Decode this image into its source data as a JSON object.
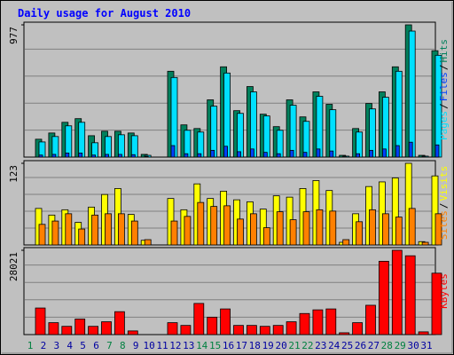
{
  "title": "Daily usage for August 2010",
  "legend_separator": "/",
  "categories": [
    "1",
    "2",
    "3",
    "4",
    "5",
    "6",
    "7",
    "8",
    "9",
    "10",
    "11",
    "12",
    "13",
    "14",
    "15",
    "16",
    "17",
    "18",
    "19",
    "20",
    "21",
    "22",
    "23",
    "24",
    "25",
    "26",
    "27",
    "28",
    "29",
    "30",
    "31"
  ],
  "category_colors": [
    "#008040",
    "#0000a0",
    "#0000a0",
    "#0000a0",
    "#0000a0",
    "#0000a0",
    "#008040",
    "#008040",
    "#0000a0",
    "#0000a0",
    "#0000a0",
    "#0000a0",
    "#0000a0",
    "#008040",
    "#008040",
    "#0000a0",
    "#0000a0",
    "#0000a0",
    "#0000a0",
    "#0000a0",
    "#008040",
    "#008040",
    "#0000a0",
    "#0000a0",
    "#0000a0",
    "#0000a0",
    "#0000a0",
    "#008040",
    "#008040",
    "#0000a0",
    "#0000a0"
  ],
  "chart_data": [
    {
      "type": "bar",
      "ylim": [
        0,
        977
      ],
      "yticks": [
        977
      ],
      "series": [
        {
          "name": "Pages",
          "color": "#00e0ff",
          "values": [
            112,
            152,
            231,
            257,
            106,
            152,
            165,
            158,
            13,
            0,
            588,
            198,
            185,
            376,
            621,
            323,
            482,
            304,
            198,
            383,
            264,
            449,
            350,
            7,
            185,
            356,
            442,
            634,
            931,
            7,
            752
          ]
        },
        {
          "name": "Files",
          "color": "#0040ff",
          "values": [
            15,
            20,
            30,
            30,
            15,
            20,
            20,
            18,
            5,
            0,
            85,
            25,
            25,
            50,
            80,
            40,
            60,
            35,
            25,
            50,
            35,
            60,
            45,
            2,
            25,
            50,
            60,
            85,
            110,
            2,
            90
          ]
        },
        {
          "name": "Hits",
          "color": "#00805c",
          "values": [
            132,
            178,
            257,
            284,
            158,
            191,
            191,
            178,
            20,
            0,
            634,
            238,
            211,
            423,
            667,
            343,
            521,
            317,
            225,
            423,
            297,
            482,
            390,
            13,
            211,
            396,
            482,
            667,
            977,
            13,
            786
          ]
        }
      ]
    },
    {
      "type": "bar",
      "ylim": [
        0,
        123
      ],
      "yticks": [
        123
      ],
      "series": [
        {
          "name": "Sites",
          "color": "#ff8000",
          "values": [
            31,
            36,
            47,
            24,
            45,
            47,
            47,
            36,
            8,
            0,
            36,
            43,
            64,
            58,
            59,
            39,
            47,
            26,
            50,
            38,
            50,
            53,
            51,
            8,
            35,
            53,
            47,
            42,
            55,
            4,
            47
          ]
        },
        {
          "name": "Visits",
          "color": "#ffff00",
          "values": [
            55,
            45,
            53,
            34,
            57,
            76,
            85,
            46,
            7,
            0,
            70,
            53,
            92,
            70,
            81,
            68,
            65,
            54,
            74,
            72,
            85,
            97,
            82,
            4,
            47,
            88,
            95,
            101,
            123,
            5,
            104
          ]
        }
      ]
    },
    {
      "type": "bar",
      "ylim": [
        0,
        28021
      ],
      "yticks": [
        28021
      ],
      "series": [
        {
          "name": "KBytes",
          "color": "#ff0000",
          "values": [
            8833,
            3960,
            2741,
            5178,
            2741,
            4264,
            7615,
            1218,
            0,
            0,
            3960,
            3046,
            10356,
            5787,
            8528,
            3046,
            3046,
            2741,
            3046,
            4264,
            7005,
            8224,
            8528,
            609,
            3960,
            9746,
            24366,
            28021,
            26194,
            914,
            20406
          ]
        }
      ]
    }
  ]
}
